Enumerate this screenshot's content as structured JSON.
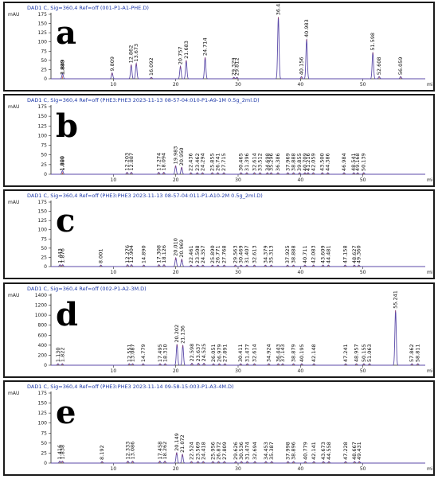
{
  "panels": [
    {
      "letter": "a",
      "header": "DAD1 C, Sig=360,4 Ref=off (001-P1-A1-PHE.D)",
      "y_unit": "mAU",
      "x_unit": "min",
      "y_ticks": [
        "0",
        "25",
        "50",
        "75",
        "100",
        "125",
        "150",
        "175"
      ],
      "x_ticks": [
        "10",
        "20",
        "30",
        "40",
        "50"
      ]
    },
    {
      "letter": "b",
      "header": "DAD1 C, Sig=360,4 Ref=off (PHE3:PHE3 2023-11-13 08-57-04:010-P1-A9-1M 0.5g_2ml.D)",
      "y_unit": "mAU",
      "x_unit": "min",
      "y_ticks": [
        "0",
        "25",
        "50",
        "75",
        "100",
        "125",
        "150",
        "175"
      ],
      "x_ticks": [
        "10",
        "20",
        "30",
        "40",
        "50"
      ]
    },
    {
      "letter": "c",
      "header": "DAD1 C, Sig=360,4 Ref=off (PHE3:PHE3 2023-11-13 08-57-04:011-P1-A10-2M 0.5g_2ml.D)",
      "y_unit": "mAU",
      "x_unit": "min",
      "y_ticks": [
        "0",
        "25",
        "50",
        "75",
        "100",
        "125",
        "150",
        "175"
      ],
      "x_ticks": [
        "10",
        "20",
        "30",
        "40",
        "50"
      ]
    },
    {
      "letter": "d",
      "header": "DAD1 C, Sig=360,4 Ref=off (002-P1-A2-3M.D)",
      "y_unit": "mAU",
      "x_unit": "min",
      "y_ticks": [
        "0",
        "200",
        "400",
        "600",
        "800",
        "1000",
        "1200",
        "1400"
      ],
      "x_ticks": [
        "10",
        "20",
        "30",
        "40",
        "50"
      ]
    },
    {
      "letter": "e",
      "header": "DAD1 C, Sig=360,4 Ref=off (PHE3:PHE3 2023-11-14 09-58-15:003-P1-A3-4M.D)",
      "y_unit": "mAU",
      "x_unit": "min",
      "y_ticks": [
        "0",
        "25",
        "50",
        "75",
        "100",
        "125",
        "150",
        "175"
      ],
      "x_ticks": [
        "10",
        "20",
        "30",
        "40",
        "50"
      ]
    }
  ],
  "chart_data": [
    {
      "type": "line",
      "title": "DAD1 C, Sig=360,4 Ref=off (001-P1-A1-PHE.D)",
      "xlabel": "min",
      "ylabel": "mAU",
      "xlim": [
        0,
        60
      ],
      "ylim": [
        0,
        175
      ],
      "line_color": "#5b4aa8",
      "peaks": [
        {
          "rt": 1.849,
          "h": 8,
          "label": "1.849"
        },
        {
          "rt": 1.88,
          "h": 6,
          "label": "1.880"
        },
        {
          "rt": 9.809,
          "h": 16,
          "label": "9.809"
        },
        {
          "rt": 12.862,
          "h": 38,
          "label": "12.862"
        },
        {
          "rt": 13.673,
          "h": 42,
          "label": "13.673"
        },
        {
          "rt": 16.092,
          "h": 4,
          "label": "16.092"
        },
        {
          "rt": 20.757,
          "h": 34,
          "label": "20.757"
        },
        {
          "rt": 21.683,
          "h": 50,
          "label": "21.683"
        },
        {
          "rt": 24.714,
          "h": 58,
          "label": "24.714"
        },
        {
          "rt": 29.329,
          "h": 4,
          "label": "29.329"
        },
        {
          "rt": 29.812,
          "h": 4,
          "label": "29.812"
        },
        {
          "rt": 36.451,
          "h": 168,
          "label": "36.451"
        },
        {
          "rt": 40.156,
          "h": 6,
          "label": "40.156"
        },
        {
          "rt": 40.983,
          "h": 108,
          "label": "40.983"
        },
        {
          "rt": 51.598,
          "h": 72,
          "label": "51.598"
        },
        {
          "rt": 52.608,
          "h": 6,
          "label": "52.608"
        },
        {
          "rt": 56.059,
          "h": 6,
          "label": "56.059"
        }
      ]
    },
    {
      "type": "line",
      "title": "DAD1 C, Sig=360,4 Ref=off (PHE3:PHE3 2023-11-13 08-57-04:010-P1-A9-1M 0.5g_2ml.D)",
      "xlabel": "min",
      "ylabel": "mAU",
      "xlim": [
        0,
        60
      ],
      "ylim": [
        0,
        175
      ],
      "line_color": "#5b4aa8",
      "peaks": [
        {
          "rt": 1.809,
          "h": 5,
          "label": "1.809"
        },
        {
          "rt": 1.88,
          "h": 5,
          "label": "1.880"
        },
        {
          "rt": 12.203,
          "h": 5,
          "label": "12.203"
        },
        {
          "rt": 12.887,
          "h": 5,
          "label": "12.887"
        },
        {
          "rt": 17.274,
          "h": 5,
          "label": "17.274"
        },
        {
          "rt": 18.094,
          "h": 5,
          "label": "18.094"
        },
        {
          "rt": 19.983,
          "h": 22,
          "label": "19.983"
        },
        {
          "rt": 20.95,
          "h": 18,
          "label": "20.950"
        },
        {
          "rt": 22.436,
          "h": 4,
          "label": "22.436"
        },
        {
          "rt": 23.462,
          "h": 4,
          "label": "23.462"
        },
        {
          "rt": 24.294,
          "h": 4,
          "label": "24.294"
        },
        {
          "rt": 25.855,
          "h": 4,
          "label": "25.855"
        },
        {
          "rt": 26.741,
          "h": 4,
          "label": "26.741"
        },
        {
          "rt": 27.715,
          "h": 4,
          "label": "27.715"
        },
        {
          "rt": 30.465,
          "h": 4,
          "label": "30.465"
        },
        {
          "rt": 31.396,
          "h": 4,
          "label": "31.396"
        },
        {
          "rt": 32.614,
          "h": 4,
          "label": "32.614"
        },
        {
          "rt": 33.512,
          "h": 4,
          "label": "33.512"
        },
        {
          "rt": 34.698,
          "h": 4,
          "label": "34.698"
        },
        {
          "rt": 35.296,
          "h": 4,
          "label": "35.296"
        },
        {
          "rt": 36.386,
          "h": 4,
          "label": "36.386"
        },
        {
          "rt": 37.969,
          "h": 4,
          "label": "37.969"
        },
        {
          "rt": 38.888,
          "h": 4,
          "label": "38.888"
        },
        {
          "rt": 39.855,
          "h": 4,
          "label": "39.855"
        },
        {
          "rt": 40.709,
          "h": 4,
          "label": "40.709"
        },
        {
          "rt": 41.216,
          "h": 4,
          "label": "41.216"
        },
        {
          "rt": 42.059,
          "h": 4,
          "label": "42.059"
        },
        {
          "rt": 43.5,
          "h": 4,
          "label": "43.500"
        },
        {
          "rt": 44.386,
          "h": 4,
          "label": "44.386"
        },
        {
          "rt": 46.984,
          "h": 4,
          "label": "46.984"
        },
        {
          "rt": 48.541,
          "h": 4,
          "label": "48.541"
        },
        {
          "rt": 49.168,
          "h": 4,
          "label": "49.168"
        },
        {
          "rt": 50.139,
          "h": 4,
          "label": "50.139"
        }
      ]
    },
    {
      "type": "line",
      "title": "DAD1 C, Sig=360,4 Ref=off (PHE3:PHE3 2023-11-13 08-57-04:011-P1-A10-2M 0.5g_2ml.D)",
      "xlabel": "min",
      "ylabel": "mAU",
      "xlim": [
        0,
        60
      ],
      "ylim": [
        0,
        175
      ],
      "line_color": "#5b4aa8",
      "peaks": [
        {
          "rt": 1.443,
          "h": 5,
          "label": "1.443"
        },
        {
          "rt": 1.876,
          "h": 5,
          "label": "1.876"
        },
        {
          "rt": 8.001,
          "h": 4,
          "label": "8.001"
        },
        {
          "rt": 12.276,
          "h": 5,
          "label": "12.276"
        },
        {
          "rt": 12.904,
          "h": 5,
          "label": "12.904"
        },
        {
          "rt": 14.89,
          "h": 4,
          "label": "14.890"
        },
        {
          "rt": 17.308,
          "h": 5,
          "label": "17.308"
        },
        {
          "rt": 18.126,
          "h": 5,
          "label": "18.126"
        },
        {
          "rt": 20.01,
          "h": 24,
          "label": "20.010"
        },
        {
          "rt": 20.969,
          "h": 20,
          "label": "20.969"
        },
        {
          "rt": 22.461,
          "h": 4,
          "label": "22.461"
        },
        {
          "rt": 23.508,
          "h": 4,
          "label": "23.508"
        },
        {
          "rt": 24.357,
          "h": 4,
          "label": "24.357"
        },
        {
          "rt": 25.89,
          "h": 4,
          "label": "25.890"
        },
        {
          "rt": 26.771,
          "h": 4,
          "label": "26.771"
        },
        {
          "rt": 27.768,
          "h": 4,
          "label": "27.768"
        },
        {
          "rt": 29.563,
          "h": 4,
          "label": "29.563"
        },
        {
          "rt": 30.469,
          "h": 4,
          "label": "30.469"
        },
        {
          "rt": 31.407,
          "h": 4,
          "label": "31.407"
        },
        {
          "rt": 32.613,
          "h": 4,
          "label": "32.613"
        },
        {
          "rt": 34.379,
          "h": 4,
          "label": "34.379"
        },
        {
          "rt": 35.313,
          "h": 4,
          "label": "35.313"
        },
        {
          "rt": 37.925,
          "h": 4,
          "label": "37.925"
        },
        {
          "rt": 38.888,
          "h": 4,
          "label": "38.888"
        },
        {
          "rt": 40.711,
          "h": 4,
          "label": "40.711"
        },
        {
          "rt": 42.083,
          "h": 4,
          "label": "42.083"
        },
        {
          "rt": 43.609,
          "h": 4,
          "label": "43.609"
        },
        {
          "rt": 44.481,
          "h": 4,
          "label": "44.481"
        },
        {
          "rt": 47.158,
          "h": 4,
          "label": "47.158"
        },
        {
          "rt": 48.627,
          "h": 4,
          "label": "48.627"
        },
        {
          "rt": 49.36,
          "h": 4,
          "label": "49.360"
        }
      ]
    },
    {
      "type": "line",
      "title": "DAD1 C, Sig=360,4 Ref=off (002-P1-A2-3M.D)",
      "xlabel": "min",
      "ylabel": "mAU",
      "xlim": [
        0,
        60
      ],
      "ylim": [
        0,
        1400
      ],
      "line_color": "#5b4aa8",
      "peaks": [
        {
          "rt": 1.13,
          "h": 30,
          "label": "1.130"
        },
        {
          "rt": 1.822,
          "h": 30,
          "label": "1.822"
        },
        {
          "rt": 12.551,
          "h": 30,
          "label": "12.551"
        },
        {
          "rt": 13.087,
          "h": 30,
          "label": "13.087"
        },
        {
          "rt": 14.779,
          "h": 30,
          "label": "14.779"
        },
        {
          "rt": 17.495,
          "h": 30,
          "label": "17.495"
        },
        {
          "rt": 18.31,
          "h": 30,
          "label": "18.310"
        },
        {
          "rt": 20.202,
          "h": 420,
          "label": "20.202"
        },
        {
          "rt": 21.136,
          "h": 400,
          "label": "21.136"
        },
        {
          "rt": 22.598,
          "h": 40,
          "label": "22.598"
        },
        {
          "rt": 23.637,
          "h": 40,
          "label": "23.637"
        },
        {
          "rt": 24.525,
          "h": 40,
          "label": "24.525"
        },
        {
          "rt": 26.051,
          "h": 30,
          "label": "26.051"
        },
        {
          "rt": 26.979,
          "h": 30,
          "label": "26.979"
        },
        {
          "rt": 27.891,
          "h": 30,
          "label": "27.891"
        },
        {
          "rt": 30.411,
          "h": 30,
          "label": "30.411"
        },
        {
          "rt": 31.477,
          "h": 30,
          "label": "31.477"
        },
        {
          "rt": 32.614,
          "h": 30,
          "label": "32.614"
        },
        {
          "rt": 34.924,
          "h": 30,
          "label": "34.924"
        },
        {
          "rt": 36.443,
          "h": 30,
          "label": "36.443"
        },
        {
          "rt": 37.143,
          "h": 30,
          "label": "37.143"
        },
        {
          "rt": 38.879,
          "h": 30,
          "label": "38.879"
        },
        {
          "rt": 40.195,
          "h": 30,
          "label": "40.195"
        },
        {
          "rt": 42.148,
          "h": 30,
          "label": "42.148"
        },
        {
          "rt": 47.241,
          "h": 30,
          "label": "47.241"
        },
        {
          "rt": 48.957,
          "h": 30,
          "label": "48.957"
        },
        {
          "rt": 50.155,
          "h": 30,
          "label": "50.155"
        },
        {
          "rt": 51.063,
          "h": 30,
          "label": "51.063"
        },
        {
          "rt": 55.241,
          "h": 1100,
          "label": "55.241"
        },
        {
          "rt": 57.862,
          "h": 30,
          "label": "57.862"
        },
        {
          "rt": 58.811,
          "h": 30,
          "label": "58.811"
        }
      ]
    },
    {
      "type": "line",
      "title": "DAD1 C, Sig=360,4 Ref=off (PHE3:PHE3 2023-11-14 09-58-15:003-P1-A3-4M.D)",
      "xlabel": "min",
      "ylabel": "mAU",
      "xlim": [
        0,
        60
      ],
      "ylim": [
        0,
        175
      ],
      "line_color": "#5b4aa8",
      "peaks": [
        {
          "rt": 1.416,
          "h": 5,
          "label": "1.416"
        },
        {
          "rt": 1.838,
          "h": 5,
          "label": "1.838"
        },
        {
          "rt": 8.192,
          "h": 4,
          "label": "8.192"
        },
        {
          "rt": 12.333,
          "h": 5,
          "label": "12.333"
        },
        {
          "rt": 13.086,
          "h": 5,
          "label": "13.086"
        },
        {
          "rt": 17.458,
          "h": 5,
          "label": "17.458"
        },
        {
          "rt": 18.262,
          "h": 5,
          "label": "18.262"
        },
        {
          "rt": 20.149,
          "h": 26,
          "label": "20.149"
        },
        {
          "rt": 21.072,
          "h": 22,
          "label": "21.072"
        },
        {
          "rt": 22.524,
          "h": 4,
          "label": "22.524"
        },
        {
          "rt": 23.569,
          "h": 4,
          "label": "23.569"
        },
        {
          "rt": 24.418,
          "h": 4,
          "label": "24.418"
        },
        {
          "rt": 25.956,
          "h": 4,
          "label": "25.956"
        },
        {
          "rt": 26.872,
          "h": 4,
          "label": "26.872"
        },
        {
          "rt": 27.809,
          "h": 4,
          "label": "27.809"
        },
        {
          "rt": 29.626,
          "h": 4,
          "label": "29.626"
        },
        {
          "rt": 30.536,
          "h": 4,
          "label": "30.536"
        },
        {
          "rt": 31.474,
          "h": 4,
          "label": "31.474"
        },
        {
          "rt": 32.694,
          "h": 4,
          "label": "32.694"
        },
        {
          "rt": 34.453,
          "h": 4,
          "label": "34.453"
        },
        {
          "rt": 35.387,
          "h": 4,
          "label": "35.387"
        },
        {
          "rt": 37.998,
          "h": 4,
          "label": "37.998"
        },
        {
          "rt": 38.896,
          "h": 4,
          "label": "38.896"
        },
        {
          "rt": 40.779,
          "h": 4,
          "label": "40.779"
        },
        {
          "rt": 42.141,
          "h": 4,
          "label": "42.141"
        },
        {
          "rt": 43.673,
          "h": 4,
          "label": "43.673"
        },
        {
          "rt": 44.558,
          "h": 4,
          "label": "44.558"
        },
        {
          "rt": 47.228,
          "h": 4,
          "label": "47.228"
        },
        {
          "rt": 48.667,
          "h": 4,
          "label": "48.667"
        },
        {
          "rt": 49.431,
          "h": 4,
          "label": "49.431"
        }
      ]
    }
  ]
}
